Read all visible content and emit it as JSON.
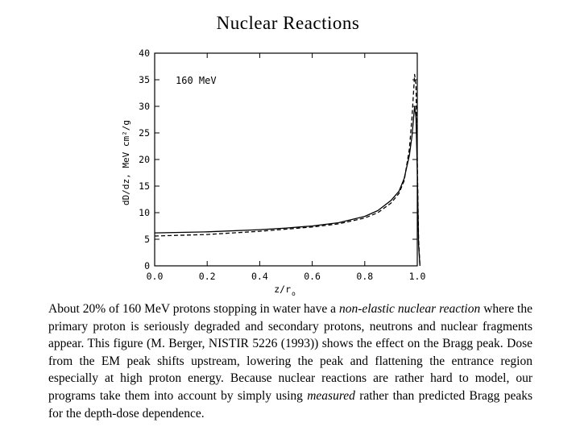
{
  "slide": {
    "title": "Nuclear Reactions"
  },
  "chart_data": {
    "type": "line",
    "annotation": "160 MeV",
    "xlabel": "z/r",
    "xlabel_sub": "o",
    "ylabel": "dD/dz, MeV cm²/g",
    "xlim": [
      0.0,
      1.0
    ],
    "ylim": [
      0,
      40
    ],
    "xticks": [
      "0.0",
      "0.2",
      "0.4",
      "0.6",
      "0.8",
      "1.0"
    ],
    "yticks": [
      "0",
      "5",
      "10",
      "15",
      "20",
      "25",
      "30",
      "35",
      "40"
    ],
    "grid": false,
    "legend": "none",
    "series": [
      {
        "style": "dashed",
        "x": [
          0.0,
          0.2,
          0.4,
          0.5,
          0.6,
          0.7,
          0.8,
          0.85,
          0.9,
          0.93,
          0.95,
          0.97,
          0.98,
          0.99,
          0.995,
          1.0,
          1.005,
          1.01
        ],
        "y": [
          5.6,
          5.9,
          6.5,
          6.9,
          7.3,
          7.9,
          9.0,
          10.0,
          11.8,
          13.6,
          16.0,
          22.0,
          28.0,
          36.0,
          34.0,
          20.0,
          5.0,
          0.0
        ]
      },
      {
        "style": "solid",
        "x": [
          0.0,
          0.2,
          0.4,
          0.5,
          0.6,
          0.7,
          0.8,
          0.85,
          0.9,
          0.93,
          0.95,
          0.97,
          0.98,
          0.99,
          0.995,
          1.0,
          1.005,
          1.01
        ],
        "y": [
          6.2,
          6.4,
          6.8,
          7.1,
          7.5,
          8.1,
          9.3,
          10.4,
          12.3,
          14.0,
          16.4,
          20.8,
          24.5,
          30.0,
          28.0,
          18.0,
          4.0,
          0.0
        ]
      }
    ]
  },
  "body": {
    "p1": "About 20% of 160 MeV protons stopping in water have a ",
    "em1": "non-elastic nuclear reaction",
    "p2": " where the primary proton is seriously degraded and secondary protons, neutrons and nuclear fragments appear. This figure (M. Berger, NISTIR 5226 (1993)) shows the effect on the Bragg peak. Dose from the EM peak shifts upstream, lowering the peak and flattening the entrance region especially at high proton energy. Because nuclear reactions are rather hard to model, our programs take them into account by simply using ",
    "em2": "measured",
    "p3": " rather than predicted Bragg peaks for the depth-dose dependence."
  }
}
